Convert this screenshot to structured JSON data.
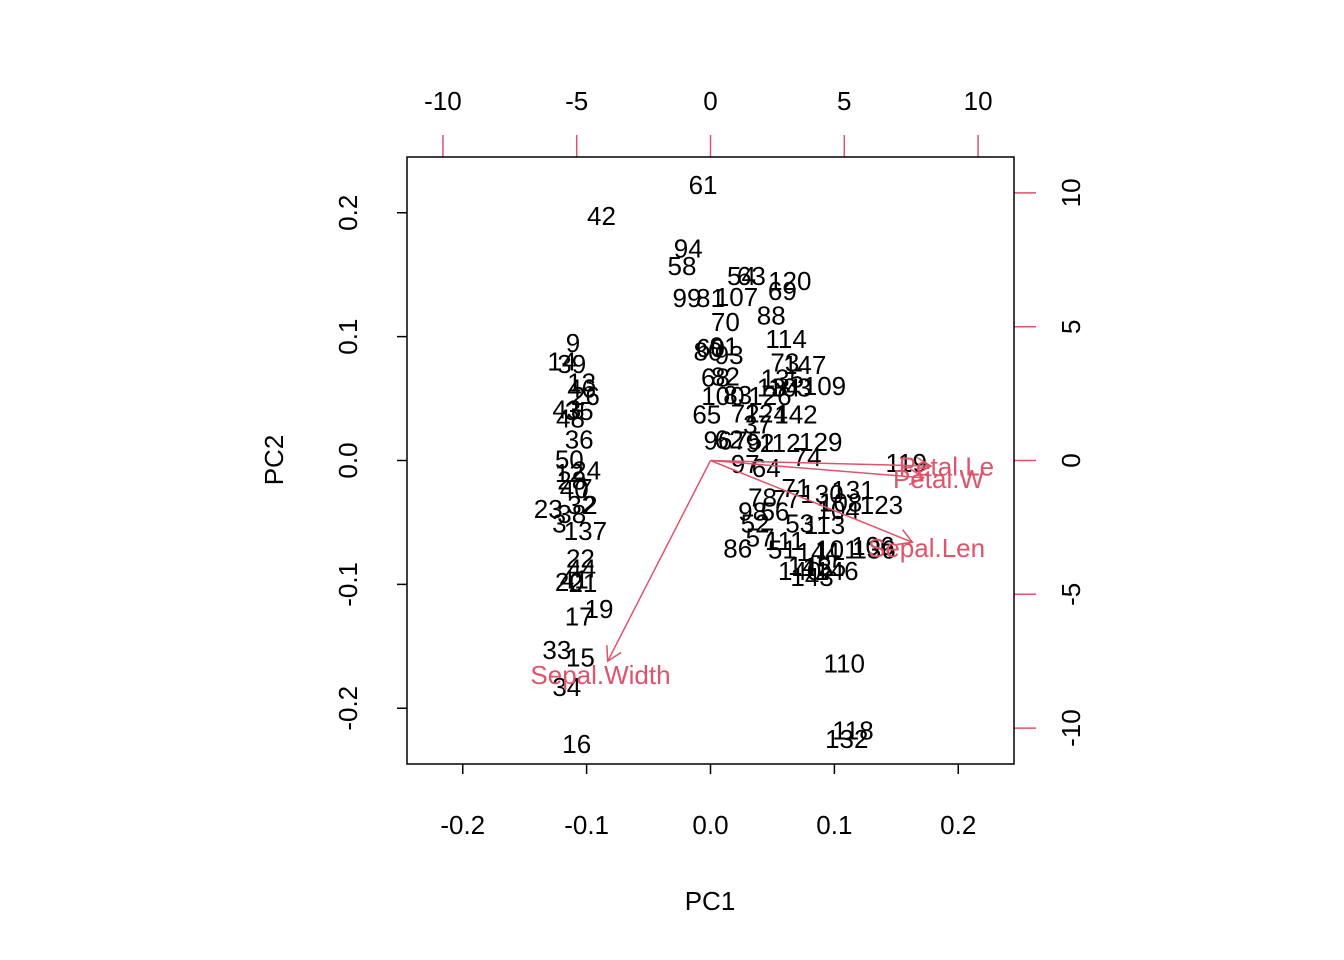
{
  "chart_data": {
    "type": "scatter",
    "subtype": "biplot",
    "xlabel": "PC1",
    "ylabel": "PC2",
    "xlim": [
      -0.245,
      0.245
    ],
    "ylim": [
      -0.245,
      0.245
    ],
    "x_ticks": [
      "-0.2",
      "-0.1",
      "0.0",
      "0.1",
      "0.2"
    ],
    "y_ticks": [
      "-0.2",
      "-0.1",
      "0.0",
      "0.1",
      "0.2"
    ],
    "top_ticks": [
      "-10",
      "-5",
      "0",
      "5",
      "10"
    ],
    "right_ticks": [
      "-10",
      "-5",
      "0",
      "5",
      "10"
    ],
    "loading_color": "#DF536B",
    "point_color": "#000000",
    "points": [
      {
        "label": "61",
        "x": -0.006,
        "y": 0.2225
      },
      {
        "label": "42",
        "x": -0.088,
        "y": 0.1975
      },
      {
        "label": "94",
        "x": -0.018,
        "y": 0.171
      },
      {
        "label": "58",
        "x": -0.023,
        "y": 0.157
      },
      {
        "label": "54",
        "x": 0.025,
        "y": 0.149
      },
      {
        "label": "63",
        "x": 0.033,
        "y": 0.149
      },
      {
        "label": "120",
        "x": 0.064,
        "y": 0.145
      },
      {
        "label": "69",
        "x": 0.058,
        "y": 0.137
      },
      {
        "label": "107",
        "x": 0.021,
        "y": 0.132
      },
      {
        "label": "99",
        "x": -0.019,
        "y": 0.131
      },
      {
        "label": "81",
        "x": 0.0,
        "y": 0.131
      },
      {
        "label": "88",
        "x": 0.049,
        "y": 0.117
      },
      {
        "label": "70",
        "x": 0.012,
        "y": 0.112
      },
      {
        "label": "114",
        "x": 0.061,
        "y": 0.098
      },
      {
        "label": "9",
        "x": -0.111,
        "y": 0.095
      },
      {
        "label": "60",
        "x": 0.0,
        "y": 0.091
      },
      {
        "label": "91",
        "x": 0.011,
        "y": 0.092
      },
      {
        "label": "80",
        "x": -0.002,
        "y": 0.088
      },
      {
        "label": "93",
        "x": 0.015,
        "y": 0.085
      },
      {
        "label": "73",
        "x": 0.06,
        "y": 0.079
      },
      {
        "label": "147",
        "x": 0.076,
        "y": 0.077
      },
      {
        "label": "14",
        "x": -0.12,
        "y": 0.08
      },
      {
        "label": "39",
        "x": -0.112,
        "y": 0.078
      },
      {
        "label": "68",
        "x": 0.004,
        "y": 0.067
      },
      {
        "label": "82",
        "x": 0.012,
        "y": 0.068
      },
      {
        "label": "135",
        "x": 0.058,
        "y": 0.066
      },
      {
        "label": "109",
        "x": 0.092,
        "y": 0.06
      },
      {
        "label": "13",
        "x": -0.104,
        "y": 0.063
      },
      {
        "label": "46",
        "x": -0.104,
        "y": 0.058
      },
      {
        "label": "26",
        "x": -0.101,
        "y": 0.052
      },
      {
        "label": "134",
        "x": 0.055,
        "y": 0.059
      },
      {
        "label": "103",
        "x": 0.064,
        "y": 0.059
      },
      {
        "label": "100",
        "x": 0.01,
        "y": 0.052
      },
      {
        "label": "83",
        "x": 0.022,
        "y": 0.053
      },
      {
        "label": "126",
        "x": 0.048,
        "y": 0.052
      },
      {
        "label": "43",
        "x": -0.116,
        "y": 0.041
      },
      {
        "label": "35",
        "x": -0.106,
        "y": 0.04
      },
      {
        "label": "65",
        "x": -0.003,
        "y": 0.037
      },
      {
        "label": "72",
        "x": 0.028,
        "y": 0.038
      },
      {
        "label": "142",
        "x": 0.069,
        "y": 0.037
      },
      {
        "label": "124",
        "x": 0.045,
        "y": 0.038
      },
      {
        "label": "48",
        "x": -0.113,
        "y": 0.034
      },
      {
        "label": "37",
        "x": 0.038,
        "y": 0.029
      },
      {
        "label": "36",
        "x": -0.106,
        "y": 0.017
      },
      {
        "label": "96",
        "x": 0.006,
        "y": 0.016
      },
      {
        "label": "75",
        "x": 0.03,
        "y": 0.016
      },
      {
        "label": "129",
        "x": 0.089,
        "y": 0.015
      },
      {
        "label": "62",
        "x": 0.015,
        "y": 0.017
      },
      {
        "label": "92",
        "x": 0.04,
        "y": 0.014
      },
      {
        "label": "112",
        "x": 0.056,
        "y": 0.014
      },
      {
        "label": "74",
        "x": 0.078,
        "y": 0.003
      },
      {
        "label": "50",
        "x": -0.114,
        "y": 0.001
      },
      {
        "label": "119",
        "x": 0.158,
        "y": -0.002
      },
      {
        "label": "97",
        "x": 0.028,
        "y": -0.003
      },
      {
        "label": "64",
        "x": 0.045,
        "y": -0.006
      },
      {
        "label": "24",
        "x": -0.1,
        "y": -0.008
      },
      {
        "label": "12",
        "x": -0.114,
        "y": -0.01
      },
      {
        "label": "28",
        "x": -0.112,
        "y": -0.016
      },
      {
        "label": "7",
        "x": -0.101,
        "y": -0.022
      },
      {
        "label": "40",
        "x": -0.11,
        "y": -0.023
      },
      {
        "label": "71",
        "x": 0.069,
        "y": -0.022
      },
      {
        "label": "131",
        "x": 0.115,
        "y": -0.024
      },
      {
        "label": "130",
        "x": 0.09,
        "y": -0.027
      },
      {
        "label": "78",
        "x": 0.042,
        "y": -0.03
      },
      {
        "label": "77",
        "x": 0.061,
        "y": -0.031
      },
      {
        "label": "108",
        "x": 0.105,
        "y": -0.034
      },
      {
        "label": "23",
        "x": -0.131,
        "y": -0.039
      },
      {
        "label": "32",
        "x": -0.104,
        "y": -0.036
      },
      {
        "label": "2",
        "x": -0.097,
        "y": -0.036
      },
      {
        "label": "123",
        "x": 0.138,
        "y": -0.036
      },
      {
        "label": "98",
        "x": 0.034,
        "y": -0.041
      },
      {
        "label": "56",
        "x": 0.052,
        "y": -0.041
      },
      {
        "label": "104",
        "x": 0.103,
        "y": -0.04
      },
      {
        "label": "38",
        "x": -0.112,
        "y": -0.043
      },
      {
        "label": "3",
        "x": -0.122,
        "y": -0.051
      },
      {
        "label": "52",
        "x": 0.036,
        "y": -0.051
      },
      {
        "label": "53",
        "x": 0.072,
        "y": -0.051
      },
      {
        "label": "113",
        "x": 0.092,
        "y": -0.052
      },
      {
        "label": "137",
        "x": -0.101,
        "y": -0.057
      },
      {
        "label": "57",
        "x": 0.04,
        "y": -0.062
      },
      {
        "label": "111",
        "x": 0.06,
        "y": -0.065
      },
      {
        "label": "106",
        "x": 0.131,
        "y": -0.069
      },
      {
        "label": "86",
        "x": 0.022,
        "y": -0.071
      },
      {
        "label": "51",
        "x": 0.058,
        "y": -0.072
      },
      {
        "label": "101",
        "x": 0.102,
        "y": -0.072
      },
      {
        "label": "144",
        "x": 0.087,
        "y": -0.074
      },
      {
        "label": "136",
        "x": 0.132,
        "y": -0.072
      },
      {
        "label": "22",
        "x": -0.105,
        "y": -0.079
      },
      {
        "label": "145",
        "x": 0.08,
        "y": -0.085
      },
      {
        "label": "125",
        "x": 0.092,
        "y": -0.086
      },
      {
        "label": "44",
        "x": -0.104,
        "y": -0.087
      },
      {
        "label": "140",
        "x": 0.072,
        "y": -0.089
      },
      {
        "label": "146",
        "x": 0.102,
        "y": -0.089
      },
      {
        "label": "41",
        "x": -0.11,
        "y": -0.096
      },
      {
        "label": "20",
        "x": -0.114,
        "y": -0.098
      },
      {
        "label": "21",
        "x": -0.103,
        "y": -0.099
      },
      {
        "label": "143",
        "x": 0.082,
        "y": -0.094
      },
      {
        "label": "19",
        "x": -0.09,
        "y": -0.12
      },
      {
        "label": "17",
        "x": -0.106,
        "y": -0.126
      },
      {
        "label": "33",
        "x": -0.124,
        "y": -0.153
      },
      {
        "label": "15",
        "x": -0.105,
        "y": -0.159
      },
      {
        "label": "110",
        "x": 0.108,
        "y": -0.164
      },
      {
        "label": "34",
        "x": -0.116,
        "y": -0.183
      },
      {
        "label": "118",
        "x": 0.115,
        "y": -0.218
      },
      {
        "label": "132",
        "x": 0.11,
        "y": -0.225
      },
      {
        "label": "16",
        "x": -0.108,
        "y": -0.229
      }
    ],
    "loadings": [
      {
        "name": "Sepal.Length",
        "text": "Sepal.Len",
        "x": 0.163,
        "y": -0.066
      },
      {
        "name": "Sepal.Width",
        "text": "Sepal.Width",
        "x": -0.083,
        "y": -0.162
      },
      {
        "name": "Petal.Length",
        "text": "Petal.Le",
        "x": 0.178,
        "y": -0.0045
      },
      {
        "name": "Petal.Width",
        "text": "Petal.W",
        "x": 0.172,
        "y": -0.014
      }
    ]
  }
}
